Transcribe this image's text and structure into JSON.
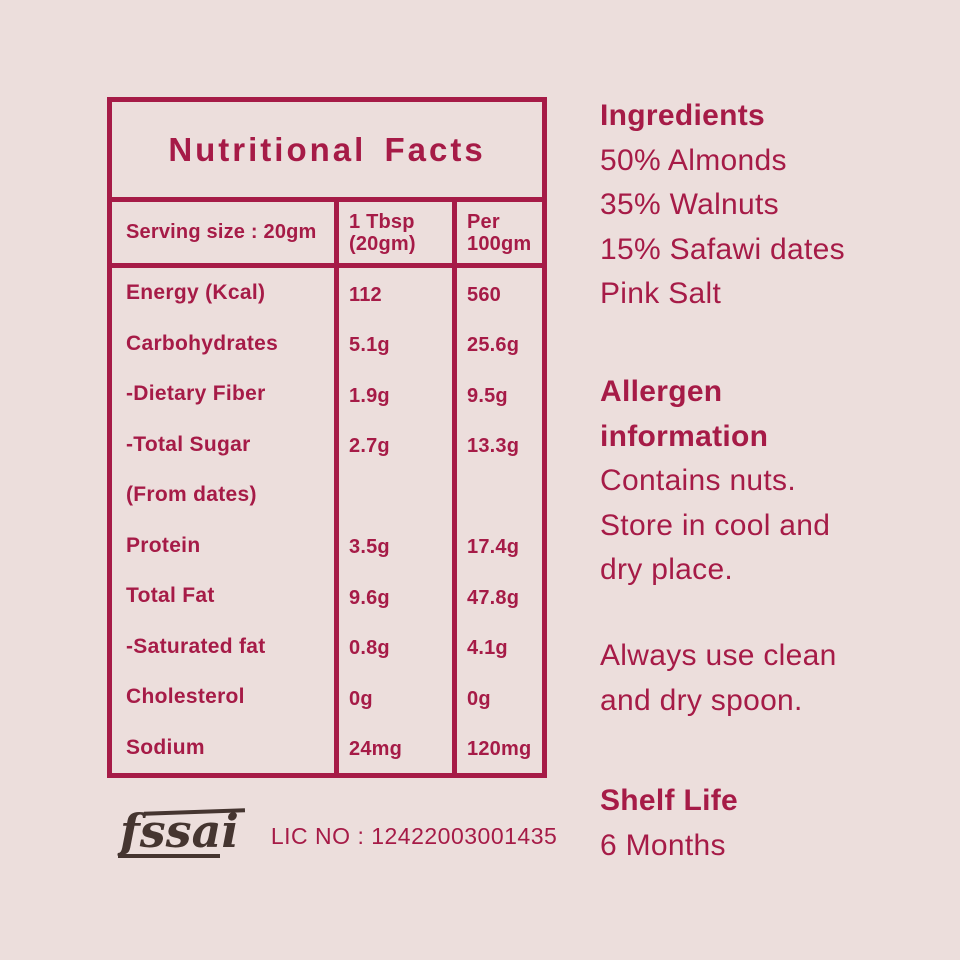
{
  "colors": {
    "accent": "#A61B47",
    "background": "#ECDEDC",
    "fssai_logo": "#453530"
  },
  "table": {
    "title": "Nutritional Facts",
    "header": {
      "serving": "Serving size : 20gm",
      "tbsp_line1": "1 Tbsp",
      "tbsp_line2": "(20gm)",
      "per100_line1": "Per",
      "per100_line2": "100gm"
    },
    "rows": [
      {
        "label": "Energy (Kcal)",
        "per_serving": "112",
        "per_100gm": "560"
      },
      {
        "label": "Carbohydrates",
        "per_serving": "5.1g",
        "per_100gm": "25.6g"
      },
      {
        "label": "-Dietary Fiber",
        "per_serving": "1.9g",
        "per_100gm": "9.5g"
      },
      {
        "label": "-Total Sugar",
        "per_serving": "2.7g",
        "per_100gm": "13.3g"
      },
      {
        "label": "(From dates)",
        "per_serving": "",
        "per_100gm": ""
      },
      {
        "label": "Protein",
        "per_serving": "3.5g",
        "per_100gm": "17.4g"
      },
      {
        "label": "Total Fat",
        "per_serving": "9.6g",
        "per_100gm": "47.8g"
      },
      {
        "label": "-Saturated fat",
        "per_serving": "0.8g",
        "per_100gm": "4.1g"
      },
      {
        "label": "Cholesterol",
        "per_serving": "0g",
        "per_100gm": "0g"
      },
      {
        "label": "Sodium",
        "per_serving": "24mg",
        "per_100gm": "120mg"
      }
    ]
  },
  "footer": {
    "fssai_logo": "fssai",
    "license": "LIC NO : 12422003001435"
  },
  "right": {
    "ingredients": {
      "heading": "Ingredients",
      "items": [
        "50% Almonds",
        "35% Walnuts",
        "15% Safawi dates",
        "Pink Salt"
      ]
    },
    "allergen": {
      "heading_line1": "Allergen",
      "heading_line2": "information",
      "lines": [
        "Contains nuts.",
        "Store in cool and",
        "dry place."
      ]
    },
    "usage": {
      "lines": [
        "Always use clean",
        "and dry spoon."
      ]
    },
    "shelf_life": {
      "heading": "Shelf Life",
      "value": "6 Months"
    }
  }
}
